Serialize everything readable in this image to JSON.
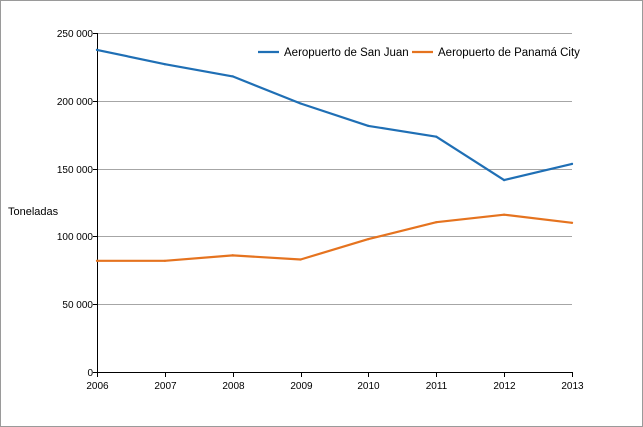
{
  "chart_data": {
    "type": "line",
    "title": "",
    "xlabel": "",
    "ylabel": "Toneladas",
    "x": [
      "2006",
      "2007",
      "2008",
      "2009",
      "2010",
      "2011",
      "2012",
      "2013"
    ],
    "ylim": [
      0,
      250000
    ],
    "yticks": [
      "0",
      "50 000",
      "100 000",
      "150 000",
      "200 000",
      "250 000"
    ],
    "ytick_values": [
      0,
      50000,
      100000,
      150000,
      200000,
      250000
    ],
    "grid": "horizontal",
    "legend_position": "top-right",
    "series": [
      {
        "name": "Aeropuerto de San Juan",
        "color": "#1f6fb5",
        "values": [
          237500,
          227000,
          218000,
          198000,
          181500,
          173500,
          141500,
          153500
        ]
      },
      {
        "name": "Aeropuerto de Panamá City",
        "color": "#e5731f",
        "values": [
          82000,
          82000,
          86000,
          83000,
          98000,
          110500,
          116000,
          110000
        ]
      }
    ]
  }
}
